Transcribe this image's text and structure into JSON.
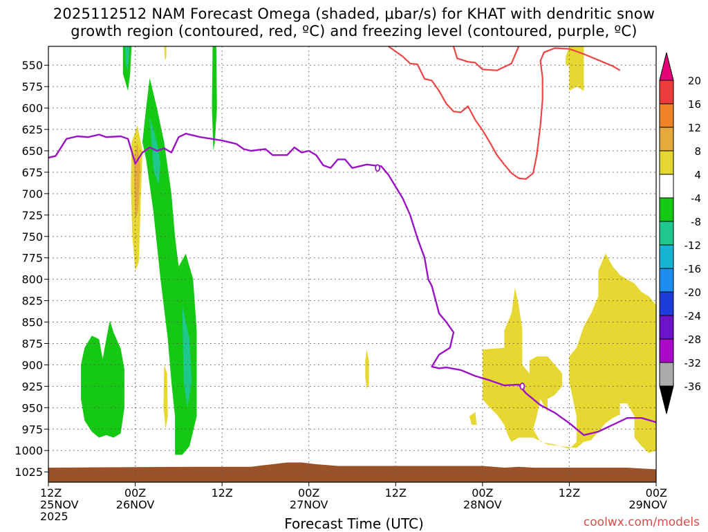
{
  "title_line1": "2025112512 NAM Forecast Omega (shaded, μbar/s) for KHAT with dendritic snow",
  "title_line2": "growth region (contoured, red, ºC) and freezing level (contoured, purple, ºC)",
  "xlabel": "Forecast Time (UTC)",
  "credit": "coolwx.com/models",
  "chart_data": {
    "type": "time-height cross-section",
    "title": "2025112512 NAM Forecast Omega (shaded, μbar/s) for KHAT with dendritic snow growth region (contoured, red, ºC) and freezing level (contoured, purple, ºC)",
    "xlabel": "Forecast Time (UTC)",
    "ylabel": "",
    "y_axis_inverted": true,
    "grid": true,
    "xlim_hours": [
      0,
      84
    ],
    "ylim_hpa": [
      1037,
      528
    ],
    "y_ticks": [
      550,
      575,
      600,
      625,
      650,
      675,
      700,
      725,
      750,
      775,
      800,
      825,
      850,
      875,
      900,
      925,
      950,
      975,
      1000,
      1025
    ],
    "x_ticks": [
      {
        "hour": 0,
        "line1": "12Z",
        "line2": "25NOV",
        "line3": "2025"
      },
      {
        "hour": 12,
        "line1": "00Z",
        "line2": "26NOV",
        "line3": ""
      },
      {
        "hour": 24,
        "line1": "12Z",
        "line2": "",
        "line3": ""
      },
      {
        "hour": 36,
        "line1": "00Z",
        "line2": "27NOV",
        "line3": ""
      },
      {
        "hour": 48,
        "line1": "12Z",
        "line2": "",
        "line3": ""
      },
      {
        "hour": 60,
        "line1": "00Z",
        "line2": "28NOV",
        "line3": ""
      },
      {
        "hour": 72,
        "line1": "12Z",
        "line2": "",
        "line3": ""
      },
      {
        "hour": 84,
        "line1": "00Z",
        "line2": "29NOV",
        "line3": ""
      }
    ],
    "colorbar": {
      "labels": [
        "20",
        "16",
        "12",
        "8",
        "4",
        "-4",
        "-8",
        "-12",
        "-16",
        "-20",
        "-24",
        "-28",
        "-32",
        "-36"
      ],
      "colors_top_to_bottom": [
        "#e60078",
        "#ee3c3c",
        "#f08228",
        "#e6aa3c",
        "#e6d732",
        "#ffffff",
        "#14c814",
        "#1ec88c",
        "#14b4d2",
        "#1e8cf0",
        "#1e3cdc",
        "#6e14c8",
        "#aa0ac8",
        "#aaaaaa",
        "#000000"
      ]
    },
    "freezing_level_label": "0",
    "freezing_level": [
      [
        0,
        658
      ],
      [
        1,
        656
      ],
      [
        2.5,
        636
      ],
      [
        4,
        633
      ],
      [
        5.5,
        634
      ],
      [
        7,
        631
      ],
      [
        8,
        634
      ],
      [
        10,
        633
      ],
      [
        11,
        636
      ],
      [
        11.5,
        650
      ],
      [
        12,
        665
      ],
      [
        13,
        652
      ],
      [
        14,
        646
      ],
      [
        15,
        650
      ],
      [
        16,
        647
      ],
      [
        17,
        652
      ],
      [
        18,
        634
      ],
      [
        19,
        630
      ],
      [
        21,
        634
      ],
      [
        24,
        638
      ],
      [
        26,
        642
      ],
      [
        27,
        648
      ],
      [
        28,
        650
      ],
      [
        30,
        648
      ],
      [
        31,
        655
      ],
      [
        33,
        655
      ],
      [
        34,
        646
      ],
      [
        35,
        652
      ],
      [
        36,
        650
      ],
      [
        37,
        655
      ],
      [
        38,
        667
      ],
      [
        39,
        670
      ],
      [
        40,
        660
      ],
      [
        41,
        660
      ],
      [
        42,
        670
      ],
      [
        43,
        668
      ],
      [
        44,
        666
      ],
      [
        46,
        668
      ],
      [
        47,
        678
      ],
      [
        48,
        692
      ],
      [
        49,
        706
      ],
      [
        50,
        725
      ],
      [
        51,
        752
      ],
      [
        52,
        775
      ],
      [
        52.5,
        800
      ],
      [
        53,
        808
      ],
      [
        54,
        840
      ],
      [
        55,
        850
      ],
      [
        56,
        862
      ],
      [
        55.5,
        880
      ],
      [
        54,
        888
      ],
      [
        53,
        902
      ],
      [
        54,
        904
      ],
      [
        55,
        903
      ],
      [
        57,
        906
      ],
      [
        59,
        913
      ],
      [
        61,
        918
      ],
      [
        63,
        924
      ],
      [
        65,
        923
      ],
      [
        66,
        933
      ],
      [
        68,
        947
      ],
      [
        70,
        956
      ],
      [
        72,
        968
      ],
      [
        74,
        982
      ],
      [
        76,
        978
      ],
      [
        78,
        970
      ],
      [
        80,
        962
      ],
      [
        82,
        962
      ],
      [
        84,
        967
      ]
    ],
    "dgz_contours": [
      [
        [
          47,
          528
        ],
        [
          49,
          540
        ],
        [
          50,
          548
        ],
        [
          51,
          549
        ],
        [
          52,
          566
        ],
        [
          53,
          568
        ],
        [
          54,
          580
        ],
        [
          55,
          595
        ],
        [
          56,
          604
        ],
        [
          57,
          605
        ],
        [
          58,
          598
        ],
        [
          59,
          614
        ],
        [
          60,
          626
        ],
        [
          61,
          640
        ],
        [
          62,
          655
        ],
        [
          63,
          666
        ],
        [
          64,
          676
        ],
        [
          65,
          682
        ],
        [
          66,
          683
        ],
        [
          67,
          676
        ],
        [
          67.5,
          655
        ],
        [
          68,
          620
        ],
        [
          68.3,
          590
        ],
        [
          68.3,
          565
        ],
        [
          68,
          545
        ],
        [
          68.5,
          535
        ],
        [
          70,
          530
        ],
        [
          72,
          531
        ],
        [
          74,
          537
        ],
        [
          76,
          544
        ],
        [
          78,
          551
        ],
        [
          79,
          556
        ]
      ],
      [
        [
          56,
          528
        ],
        [
          56.5,
          542
        ],
        [
          58,
          546
        ],
        [
          59,
          547
        ],
        [
          60,
          555
        ],
        [
          62,
          556
        ],
        [
          63,
          552
        ],
        [
          64,
          548
        ],
        [
          64.5,
          538
        ],
        [
          65,
          528
        ]
      ]
    ],
    "omega_regions": [
      {
        "value": "-4 to -8",
        "color": "#14c814",
        "poly": [
          [
            4.5,
            900
          ],
          [
            5,
            880
          ],
          [
            6,
            866
          ],
          [
            7,
            870
          ],
          [
            7.5,
            893
          ],
          [
            8,
            870
          ],
          [
            8.5,
            848
          ],
          [
            9,
            862
          ],
          [
            10,
            881
          ],
          [
            10.5,
            905
          ],
          [
            10.5,
            950
          ],
          [
            10,
            980
          ],
          [
            9,
            985
          ],
          [
            8,
            982
          ],
          [
            7,
            985
          ],
          [
            6,
            978
          ],
          [
            5,
            965
          ],
          [
            4.5,
            940
          ]
        ]
      },
      {
        "value": "-4 to -8",
        "color": "#14c814",
        "poly": [
          [
            10.3,
            528
          ],
          [
            11.5,
            528
          ],
          [
            11.3,
            560
          ],
          [
            11,
            580
          ],
          [
            10.3,
            560
          ]
        ]
      },
      {
        "value": "-4 to -8",
        "color": "#14c814",
        "poly": [
          [
            13,
            640
          ],
          [
            13.5,
            600
          ],
          [
            14,
            565
          ],
          [
            15,
            600
          ],
          [
            16,
            640
          ],
          [
            17,
            700
          ],
          [
            17.5,
            750
          ],
          [
            18,
            785
          ],
          [
            19,
            770
          ],
          [
            20,
            800
          ],
          [
            20.5,
            860
          ],
          [
            20.5,
            960
          ],
          [
            19.5,
            995
          ],
          [
            18.5,
            1005
          ],
          [
            17.5,
            1005
          ],
          [
            17.5,
            960
          ],
          [
            17,
            920
          ],
          [
            16.5,
            870
          ],
          [
            15.5,
            800
          ],
          [
            15,
            760
          ],
          [
            14.5,
            720
          ],
          [
            14,
            690
          ],
          [
            13.5,
            660
          ]
        ]
      },
      {
        "value": "-4 to -8",
        "color": "#14c814",
        "poly": [
          [
            22.7,
            528
          ],
          [
            23.2,
            528
          ],
          [
            23.3,
            600
          ],
          [
            23,
            640
          ],
          [
            22.8,
            650
          ],
          [
            22.6,
            600
          ]
        ]
      },
      {
        "value": "-8 to -12",
        "color": "#1ec88c",
        "poly": [
          [
            10.6,
            528
          ],
          [
            11.2,
            528
          ],
          [
            11,
            555
          ],
          [
            10.7,
            550
          ]
        ]
      },
      {
        "value": "-8 to -12",
        "color": "#1ec88c",
        "poly": [
          [
            14,
            610
          ],
          [
            15,
            640
          ],
          [
            15.5,
            665
          ],
          [
            15.2,
            690
          ],
          [
            14.5,
            670
          ]
        ]
      },
      {
        "value": "-8 to -12",
        "color": "#1ec88c",
        "poly": [
          [
            18.5,
            830
          ],
          [
            19.5,
            870
          ],
          [
            19.8,
            920
          ],
          [
            19.2,
            950
          ],
          [
            18.7,
            920
          ]
        ]
      },
      {
        "value": "4 to 8",
        "color": "#e6d732",
        "poly": [
          [
            11.5,
            640
          ],
          [
            12.3,
            620
          ],
          [
            13,
            650
          ],
          [
            12.8,
            700
          ],
          [
            12.5,
            780
          ],
          [
            12,
            790
          ],
          [
            11.6,
            750
          ],
          [
            11.4,
            690
          ]
        ]
      },
      {
        "value": "8 to 12",
        "color": "#e6aa3c",
        "poly": [
          [
            11.8,
            660
          ],
          [
            12.3,
            640
          ],
          [
            12.7,
            670
          ],
          [
            12.4,
            720
          ],
          [
            12,
            730
          ],
          [
            11.9,
            700
          ]
        ]
      },
      {
        "value": "4 to 8",
        "color": "#e6d732",
        "poly": [
          [
            16,
            528
          ],
          [
            16.3,
            528
          ],
          [
            16.3,
            540
          ],
          [
            16.1,
            545
          ]
        ]
      },
      {
        "value": "4 to 8",
        "color": "#e6d732",
        "poly": [
          [
            16,
            900
          ],
          [
            16.4,
            910
          ],
          [
            16.5,
            960
          ],
          [
            16.2,
            975
          ],
          [
            15.9,
            950
          ]
        ]
      },
      {
        "value": "4 to 8",
        "color": "#e6d732",
        "poly": [
          [
            43.8,
            895
          ],
          [
            44,
            882
          ],
          [
            44.3,
            895
          ],
          [
            44.3,
            922
          ],
          [
            44,
            928
          ],
          [
            43.8,
            915
          ]
        ]
      },
      {
        "value": "4 to 8",
        "color": "#e6d732",
        "poly": [
          [
            60,
            882
          ],
          [
            63,
            880
          ],
          [
            63,
            860
          ],
          [
            64,
            840
          ],
          [
            64.5,
            810
          ],
          [
            65,
            830
          ],
          [
            65.5,
            858
          ],
          [
            65.5,
            900
          ],
          [
            66.5,
            910
          ],
          [
            66.5,
            895
          ],
          [
            67.5,
            890
          ],
          [
            69,
            890
          ],
          [
            70,
            900
          ],
          [
            71,
            910
          ],
          [
            71,
            925
          ],
          [
            70,
            935
          ],
          [
            69,
            940
          ],
          [
            69,
            955
          ],
          [
            68,
            940
          ],
          [
            67.5,
            960
          ],
          [
            67,
            975
          ],
          [
            68,
            990
          ],
          [
            70,
            993
          ],
          [
            72,
            998
          ],
          [
            73,
            990
          ],
          [
            73,
            960
          ],
          [
            72,
            920
          ],
          [
            72,
            890
          ],
          [
            73,
            880
          ],
          [
            74,
            855
          ],
          [
            75,
            840
          ],
          [
            76,
            820
          ],
          [
            76,
            790
          ],
          [
            77,
            770
          ],
          [
            78,
            785
          ],
          [
            79,
            795
          ],
          [
            80,
            800
          ],
          [
            81,
            805
          ],
          [
            82,
            815
          ],
          [
            83,
            820
          ],
          [
            84,
            830
          ],
          [
            84,
            1000
          ],
          [
            83,
            1003
          ],
          [
            82,
            995
          ],
          [
            81,
            985
          ],
          [
            81,
            960
          ],
          [
            80,
            945
          ],
          [
            79,
            945
          ],
          [
            79,
            958
          ],
          [
            78,
            962
          ],
          [
            77,
            968
          ],
          [
            76,
            978
          ],
          [
            75,
            988
          ],
          [
            74,
            990
          ],
          [
            73,
            997
          ],
          [
            71,
            995
          ],
          [
            69,
            993
          ],
          [
            67,
            985
          ],
          [
            65,
            985
          ],
          [
            64,
            990
          ],
          [
            63.5,
            982
          ],
          [
            63,
            970
          ],
          [
            62,
            958
          ],
          [
            61,
            950
          ],
          [
            60,
            940
          ]
        ]
      },
      {
        "value": "4 to 8",
        "color": "#e6d732",
        "poly": [
          [
            58.2,
            960
          ],
          [
            59,
            955
          ],
          [
            59.2,
            970
          ],
          [
            58.5,
            970
          ]
        ]
      },
      {
        "value": "4 to 8",
        "color": "#e6d732",
        "poly": [
          [
            72,
            528
          ],
          [
            74,
            528
          ],
          [
            74,
            580
          ],
          [
            73,
            575
          ],
          [
            72,
            580
          ],
          [
            72,
            550
          ],
          [
            71.5,
            550
          ],
          [
            71.5,
            540
          ]
        ]
      }
    ]
  }
}
